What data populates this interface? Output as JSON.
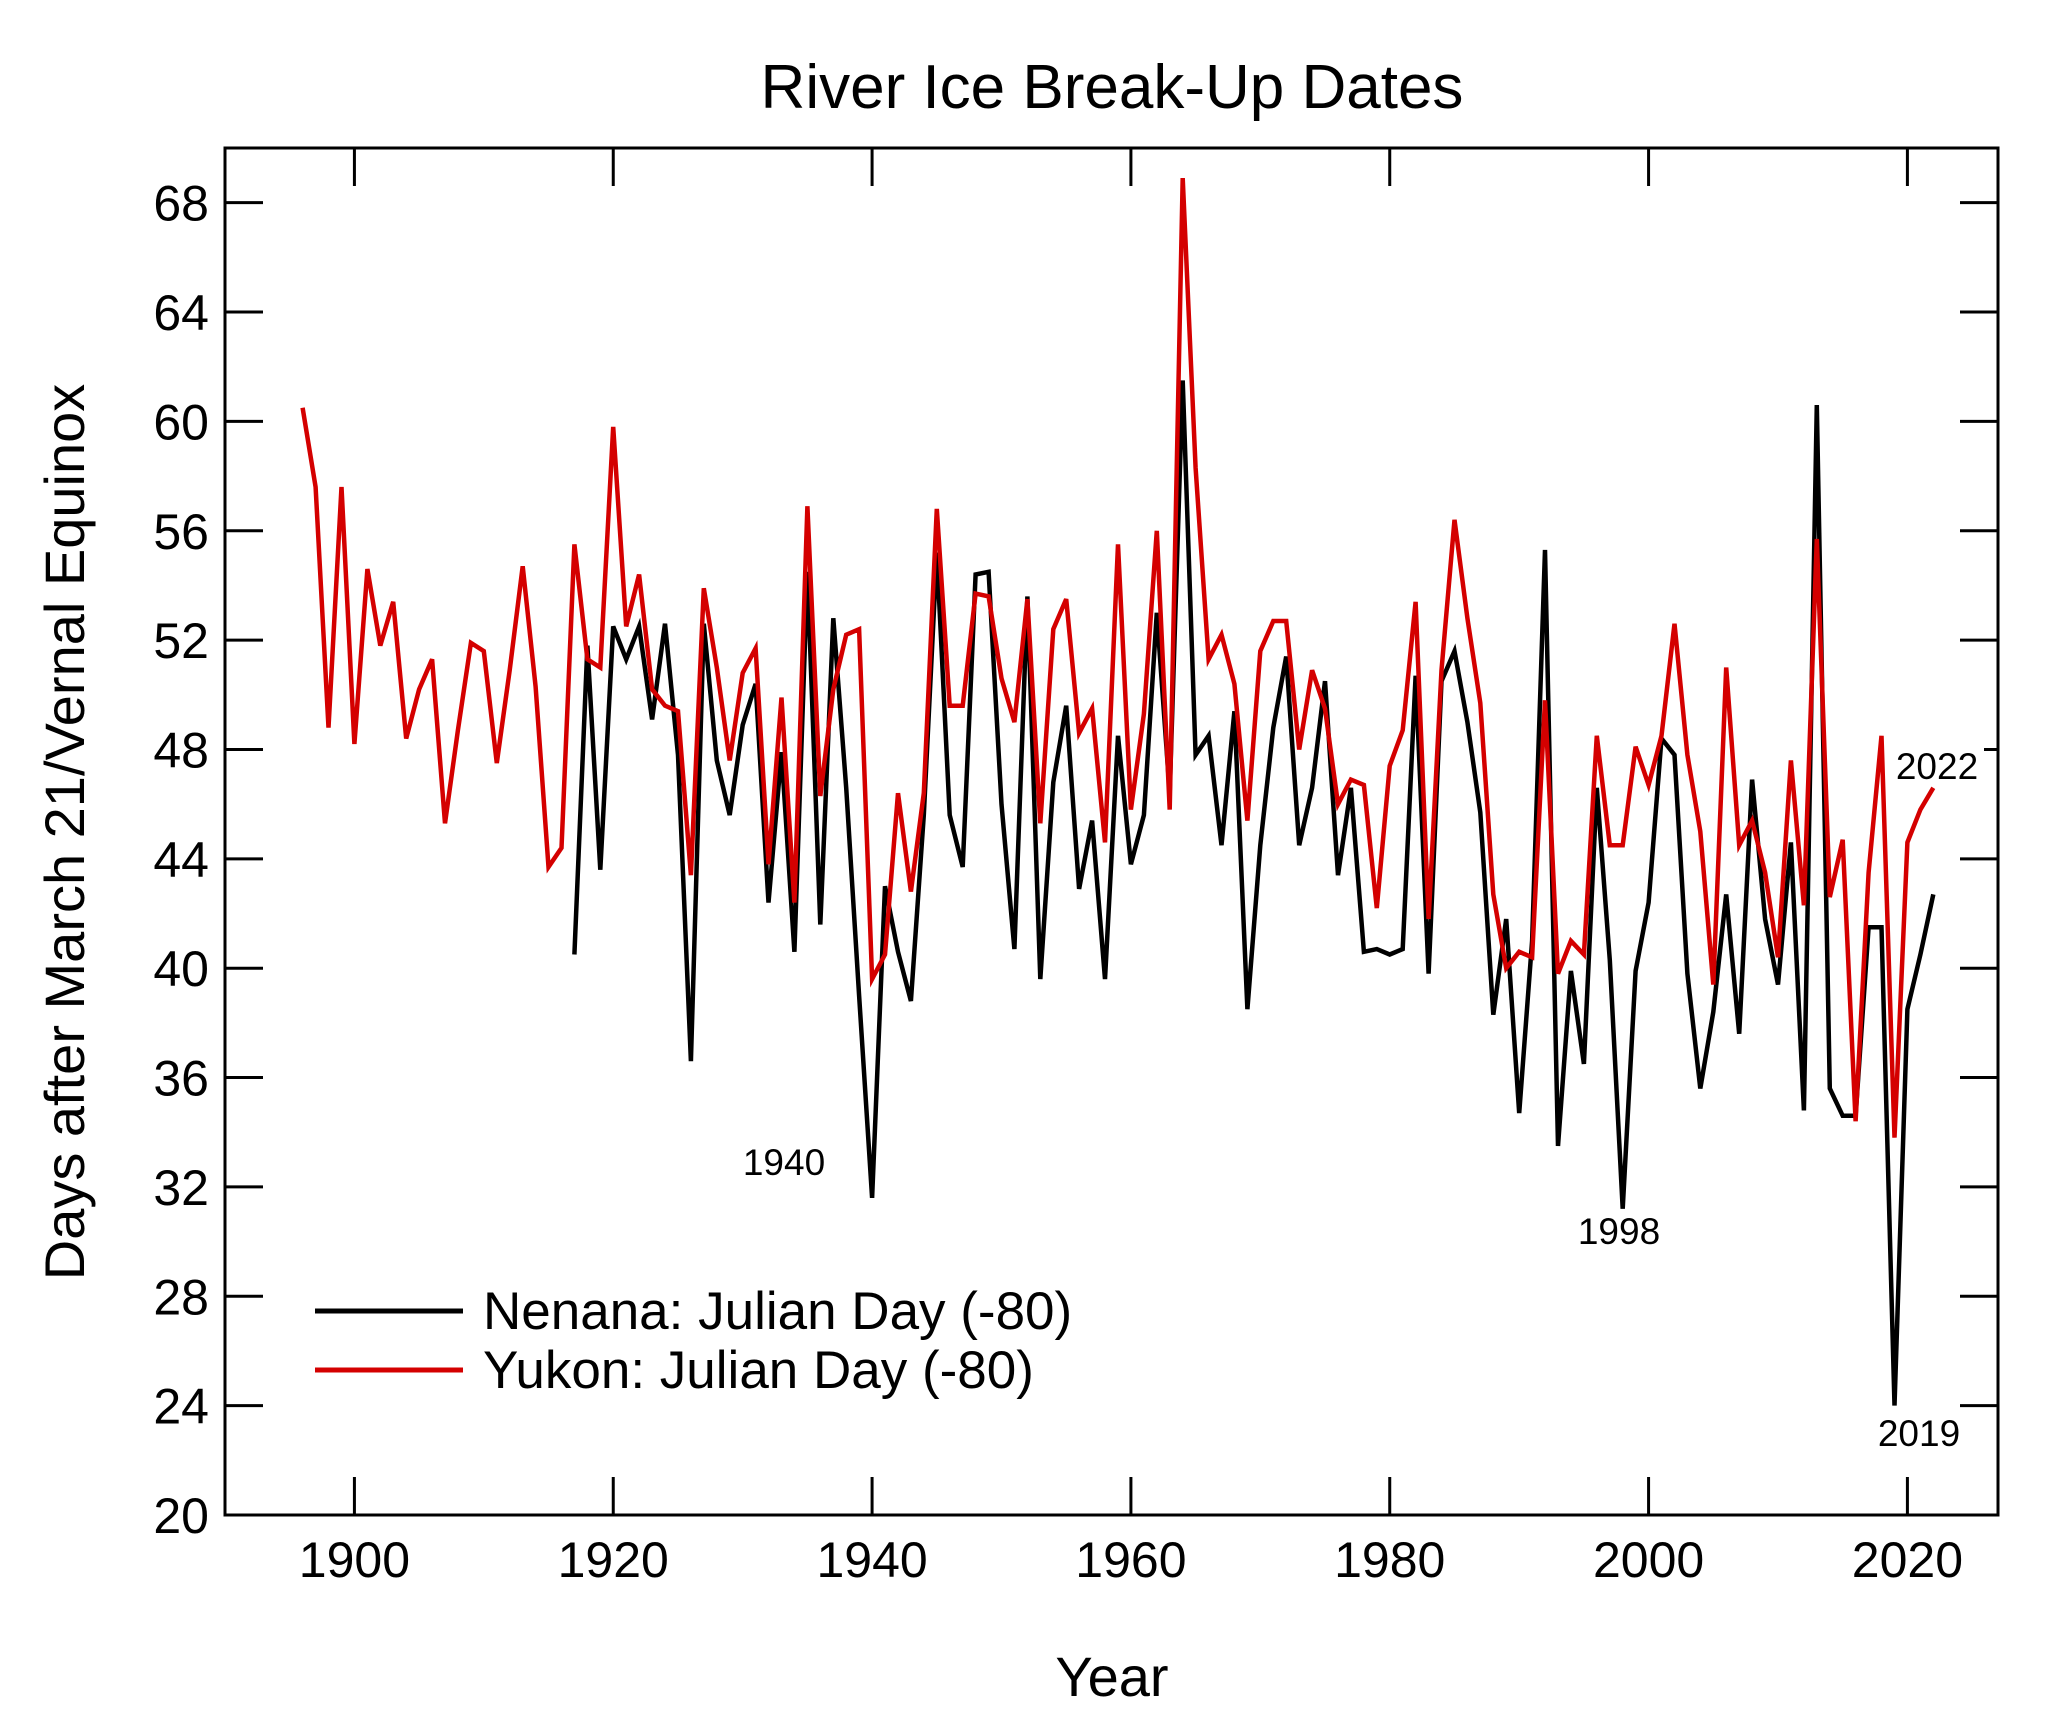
{
  "chart_data": {
    "type": "line",
    "title": "River Ice Break-Up Dates",
    "xlabel": "Year",
    "ylabel": "Days after March 21/Vernal Equinox",
    "xlim": [
      1890,
      2027
    ],
    "ylim": [
      20,
      70
    ],
    "xticks": [
      1900,
      1920,
      1940,
      1960,
      1980,
      2000,
      2020
    ],
    "yticks": [
      20,
      24,
      28,
      32,
      36,
      40,
      44,
      48,
      52,
      56,
      60,
      64,
      68
    ],
    "grid": false,
    "legend_position": "bottom-left",
    "series": [
      {
        "name": "Nenana: Julian Day (-80)",
        "color": "#000000",
        "x_start": 1917,
        "values": [
          40.5,
          51.8,
          43.6,
          52.5,
          51.3,
          52.5,
          49.1,
          52.6,
          47.8,
          36.6,
          52.6,
          47.6,
          45.6,
          48.9,
          50.4,
          42.4,
          47.9,
          40.6,
          54.5,
          41.6,
          52.8,
          46.6,
          39.0,
          31.6,
          43.0,
          40.6,
          38.8,
          45.6,
          55.2,
          45.6,
          43.7,
          54.4,
          54.5,
          46.0,
          40.7,
          53.6,
          39.6,
          46.8,
          49.6,
          42.9,
          45.4,
          39.6,
          48.5,
          43.8,
          45.6,
          53.0,
          46.4,
          61.5,
          47.8,
          48.5,
          44.5,
          49.4,
          38.5,
          44.5,
          48.8,
          51.4,
          44.5,
          46.6,
          50.5,
          43.4,
          46.6,
          40.6,
          40.7,
          40.5,
          40.7,
          50.7,
          39.8,
          50.5,
          51.6,
          49.0,
          45.7,
          38.3,
          41.8,
          34.7,
          41.0,
          55.3,
          33.5,
          39.9,
          36.5,
          46.6,
          40.3,
          31.2,
          39.9,
          42.4,
          48.4,
          47.8,
          39.8,
          35.6,
          38.4,
          42.7,
          37.6,
          46.9,
          41.8,
          39.4,
          44.6,
          34.8,
          60.6,
          35.6,
          34.6,
          34.6,
          41.5,
          41.5,
          24.0,
          38.5,
          40.5,
          42.7
        ]
      },
      {
        "name": "Yukon: Julian Day (-80)",
        "color": "#d40000",
        "x_start": 1896,
        "values": [
          60.5,
          57.6,
          48.8,
          57.6,
          48.2,
          54.6,
          51.8,
          53.4,
          48.4,
          50.2,
          51.3,
          45.3,
          48.7,
          51.9,
          51.6,
          47.5,
          50.9,
          54.7,
          50.3,
          43.7,
          44.4,
          55.5,
          51.3,
          51.0,
          59.8,
          52.5,
          54.4,
          50.2,
          49.6,
          49.4,
          43.4,
          53.9,
          51.0,
          47.6,
          50.8,
          51.7,
          43.8,
          49.9,
          42.4,
          56.9,
          46.3,
          50.2,
          52.2,
          52.4,
          39.6,
          40.5,
          46.4,
          42.8,
          46.4,
          56.8,
          49.6,
          49.6,
          53.7,
          53.6,
          50.6,
          49.0,
          53.5,
          45.3,
          52.4,
          53.5,
          48.6,
          49.5,
          44.6,
          55.5,
          45.8,
          49.3,
          56.0,
          45.8,
          68.9,
          58.3,
          51.3,
          52.2,
          50.4,
          45.4,
          51.6,
          52.7,
          52.7,
          48.0,
          50.9,
          49.5,
          46.0,
          46.9,
          46.7,
          42.2,
          47.4,
          48.7,
          53.4,
          41.8,
          50.9,
          56.4,
          52.8,
          49.7,
          42.7,
          40.0,
          40.6,
          40.4,
          49.8,
          39.8,
          41.0,
          40.5,
          48.5,
          44.5,
          44.5,
          48.1,
          46.7,
          48.5,
          52.6,
          47.8,
          45.0,
          39.4,
          51.0,
          44.5,
          45.4,
          43.5,
          40.4,
          47.6,
          42.3,
          55.7,
          42.6,
          44.7,
          34.4,
          43.5,
          48.5,
          33.8,
          44.6,
          45.8,
          46.6
        ]
      }
    ],
    "annotations": [
      {
        "text": "1940",
        "year": 1940
      },
      {
        "text": "1998",
        "year": 1998
      },
      {
        "text": "2019",
        "year": 2019
      },
      {
        "text": "2022",
        "year": 2022
      }
    ]
  }
}
